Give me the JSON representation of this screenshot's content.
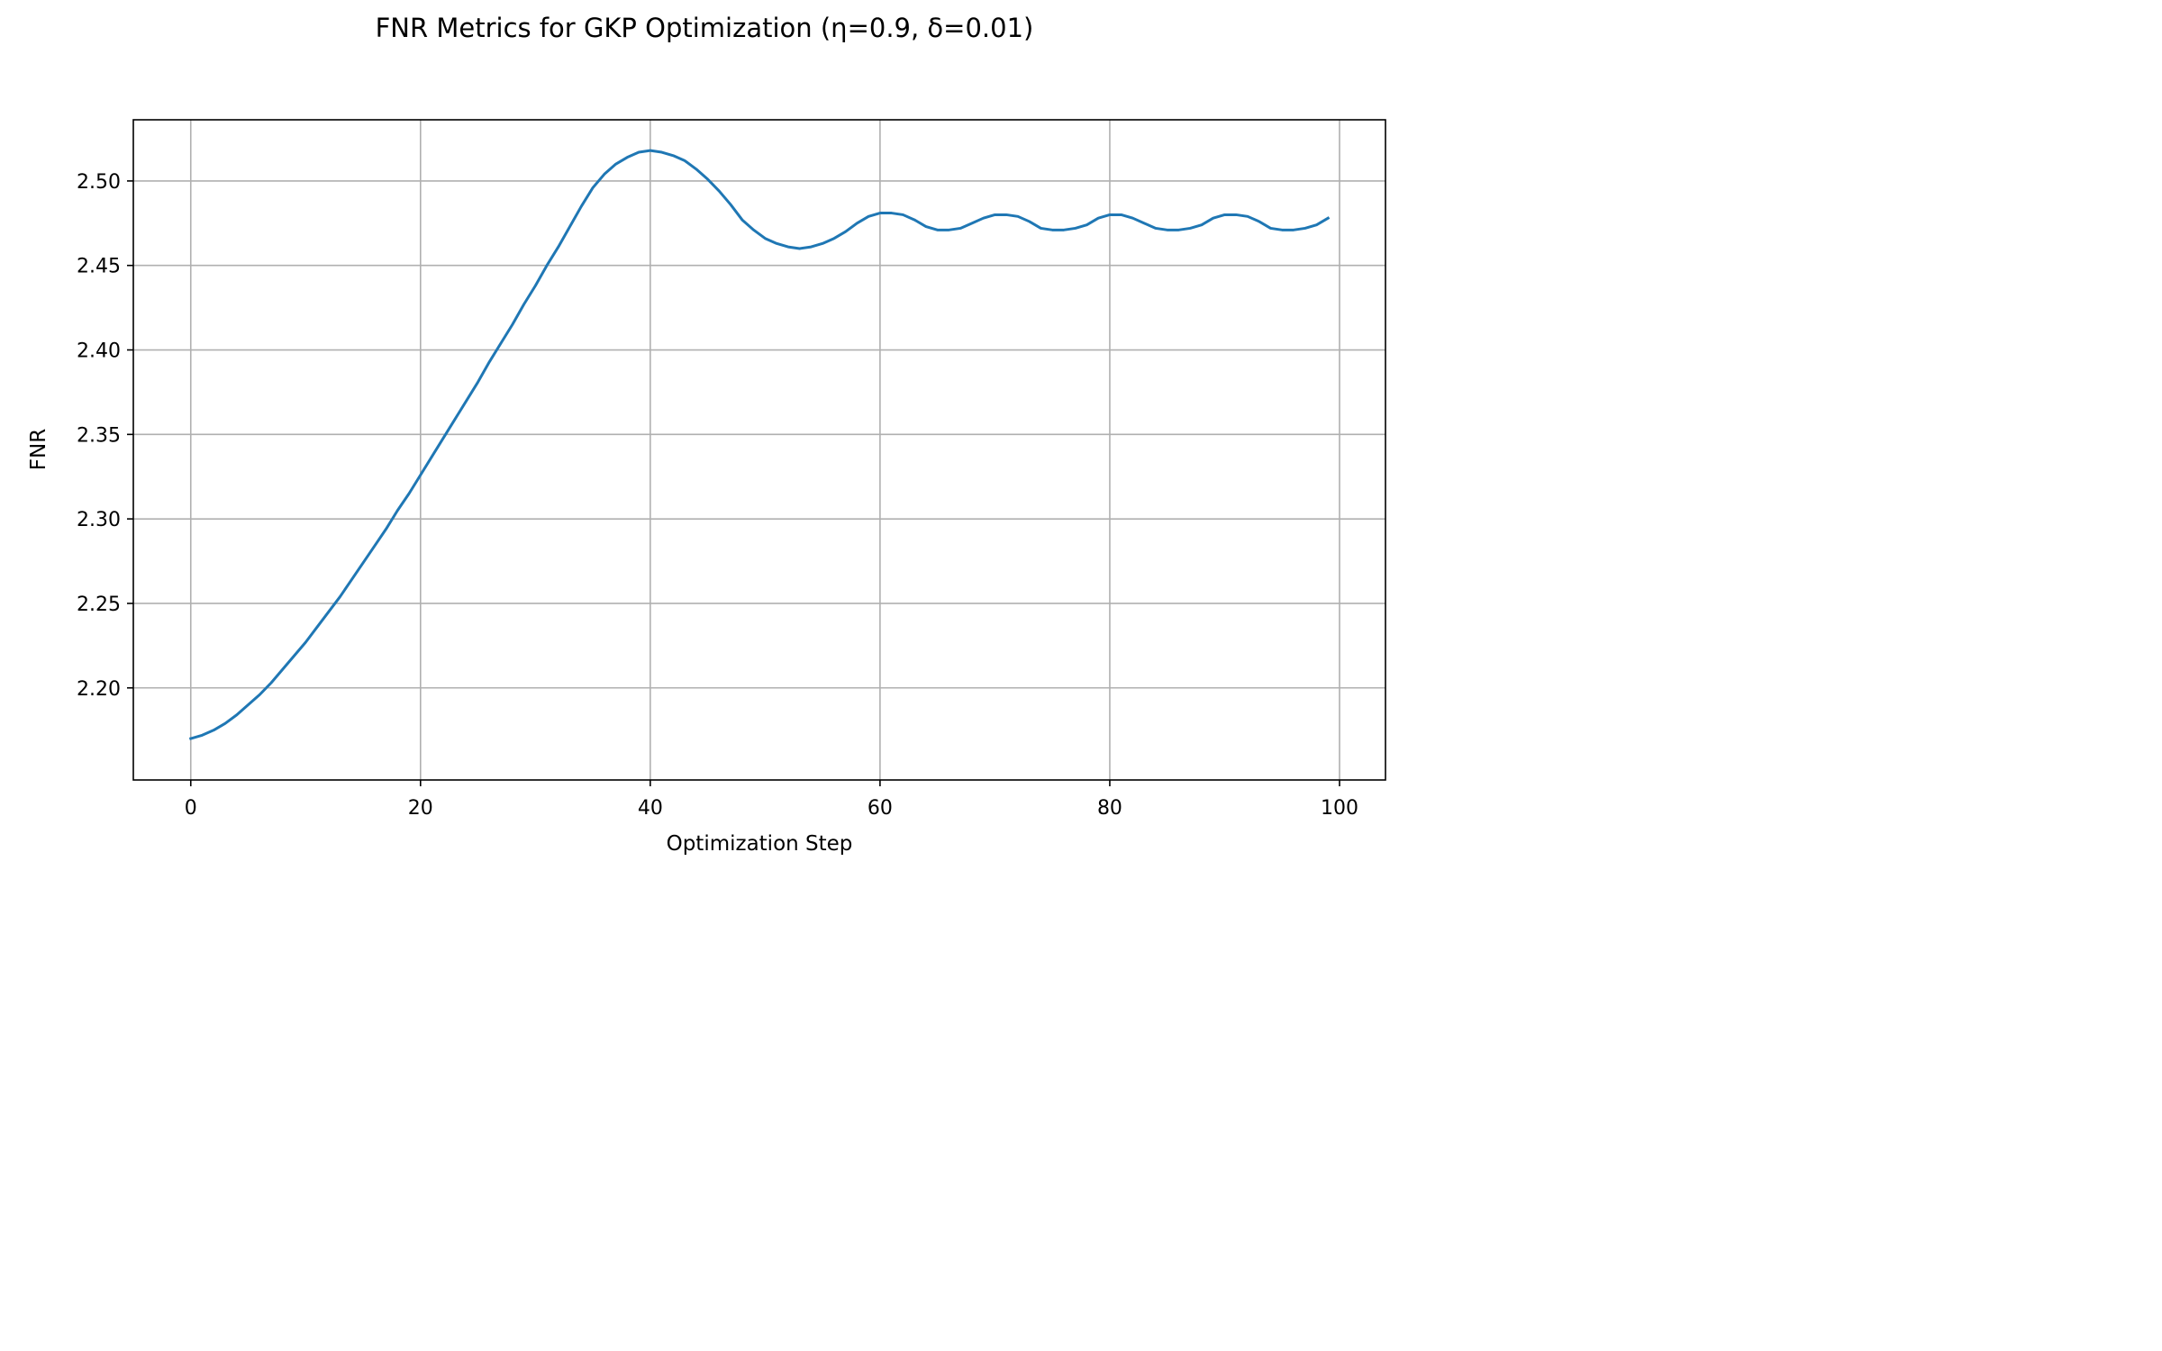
{
  "chart_data": {
    "type": "line",
    "title": "FNR Metrics for GKP Optimization (η=0.9, δ=0.01)",
    "xlabel": "Optimization Step",
    "ylabel": "FNR",
    "xlim": [
      -5,
      104
    ],
    "ylim": [
      2.1455,
      2.5362
    ],
    "grid": true,
    "xticks": [
      0,
      20,
      40,
      60,
      80,
      100
    ],
    "xtick_labels": [
      "0",
      "20",
      "40",
      "60",
      "80",
      "100"
    ],
    "yticks": [
      2.2,
      2.25,
      2.3,
      2.35,
      2.4,
      2.45,
      2.5
    ],
    "ytick_labels": [
      "2.20",
      "2.25",
      "2.30",
      "2.35",
      "2.40",
      "2.45",
      "2.50"
    ],
    "series": [
      {
        "color": "#1f77b4",
        "x": [
          0,
          1,
          2,
          3,
          4,
          5,
          6,
          7,
          8,
          9,
          10,
          11,
          12,
          13,
          14,
          15,
          16,
          17,
          18,
          19,
          20,
          21,
          22,
          23,
          24,
          25,
          26,
          27,
          28,
          29,
          30,
          31,
          32,
          33,
          34,
          35,
          36,
          37,
          38,
          39,
          40,
          41,
          42,
          43,
          44,
          45,
          46,
          47,
          48,
          49,
          50,
          51,
          52,
          53,
          54,
          55,
          56,
          57,
          58,
          59,
          60,
          61,
          62,
          63,
          64,
          65,
          66,
          67,
          68,
          69,
          70,
          71,
          72,
          73,
          74,
          75,
          76,
          77,
          78,
          79,
          80,
          81,
          82,
          83,
          84,
          85,
          86,
          87,
          88,
          89,
          90,
          91,
          92,
          93,
          94,
          95,
          96,
          97,
          98,
          99
        ],
        "y": [
          2.17,
          2.172,
          2.175,
          2.179,
          2.184,
          2.19,
          2.196,
          2.203,
          2.211,
          2.219,
          2.227,
          2.236,
          2.245,
          2.254,
          2.264,
          2.274,
          2.284,
          2.294,
          2.305,
          2.315,
          2.326,
          2.337,
          2.348,
          2.359,
          2.37,
          2.381,
          2.393,
          2.404,
          2.415,
          2.427,
          2.438,
          2.45,
          2.461,
          2.473,
          2.485,
          2.496,
          2.504,
          2.51,
          2.514,
          2.517,
          2.518,
          2.517,
          2.515,
          2.512,
          2.507,
          2.501,
          2.494,
          2.486,
          2.477,
          2.471,
          2.466,
          2.463,
          2.461,
          2.46,
          2.461,
          2.463,
          2.466,
          2.47,
          2.475,
          2.479,
          2.481,
          2.481,
          2.48,
          2.477,
          2.473,
          2.471,
          2.471,
          2.472,
          2.475,
          2.478,
          2.48,
          2.48,
          2.479,
          2.476,
          2.472,
          2.471,
          2.471,
          2.472,
          2.474,
          2.478,
          2.48,
          2.48,
          2.478,
          2.475,
          2.472,
          2.471,
          2.471,
          2.472,
          2.474,
          2.478,
          2.48,
          2.48,
          2.479,
          2.476,
          2.472,
          2.471,
          2.471,
          2.472,
          2.474,
          2.478
        ]
      }
    ]
  }
}
